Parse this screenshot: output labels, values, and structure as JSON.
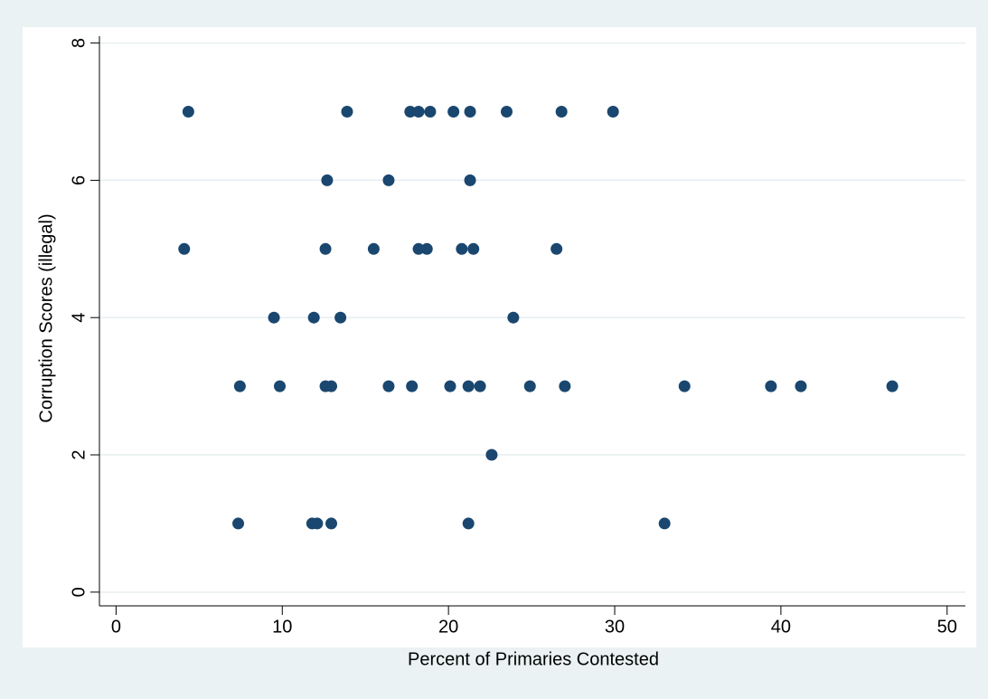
{
  "chart_data": {
    "type": "scatter",
    "x_label": "Percent of Primaries Contested",
    "y_label": "Corruption Scores (illegal)",
    "color": "#1a476f",
    "grid": true,
    "xlim": [
      -1,
      51.1
    ],
    "ylim": [
      -0.2,
      8.1
    ],
    "xticks": [
      0,
      10,
      20,
      30,
      40,
      50
    ],
    "yticks": [
      0,
      2,
      4,
      6,
      8
    ],
    "x": [
      4.35,
      13.9,
      17.7,
      18.2,
      18.9,
      20.3,
      21.3,
      23.5,
      26.8,
      29.9,
      12.7,
      16.4,
      21.3,
      4.1,
      12.6,
      15.5,
      18.2,
      18.7,
      20.8,
      21.5,
      26.5,
      9.5,
      11.9,
      13.5,
      23.9,
      7.45,
      9.85,
      12.6,
      12.95,
      16.4,
      17.8,
      20.1,
      21.2,
      21.9,
      24.9,
      27.0,
      34.2,
      39.4,
      41.2,
      46.7,
      22.6,
      7.35,
      11.8,
      12.1,
      12.95,
      21.2,
      33.0
    ],
    "values": [
      7,
      7,
      7,
      7,
      7,
      7,
      7,
      7,
      7,
      7,
      6,
      6,
      6,
      5,
      5,
      5,
      5,
      5,
      5,
      5,
      5,
      4,
      4,
      4,
      4,
      3,
      3,
      3,
      3,
      3,
      3,
      3,
      3,
      3,
      3,
      3,
      3,
      3,
      3,
      3,
      2,
      1,
      1,
      1,
      1,
      1,
      1
    ]
  }
}
